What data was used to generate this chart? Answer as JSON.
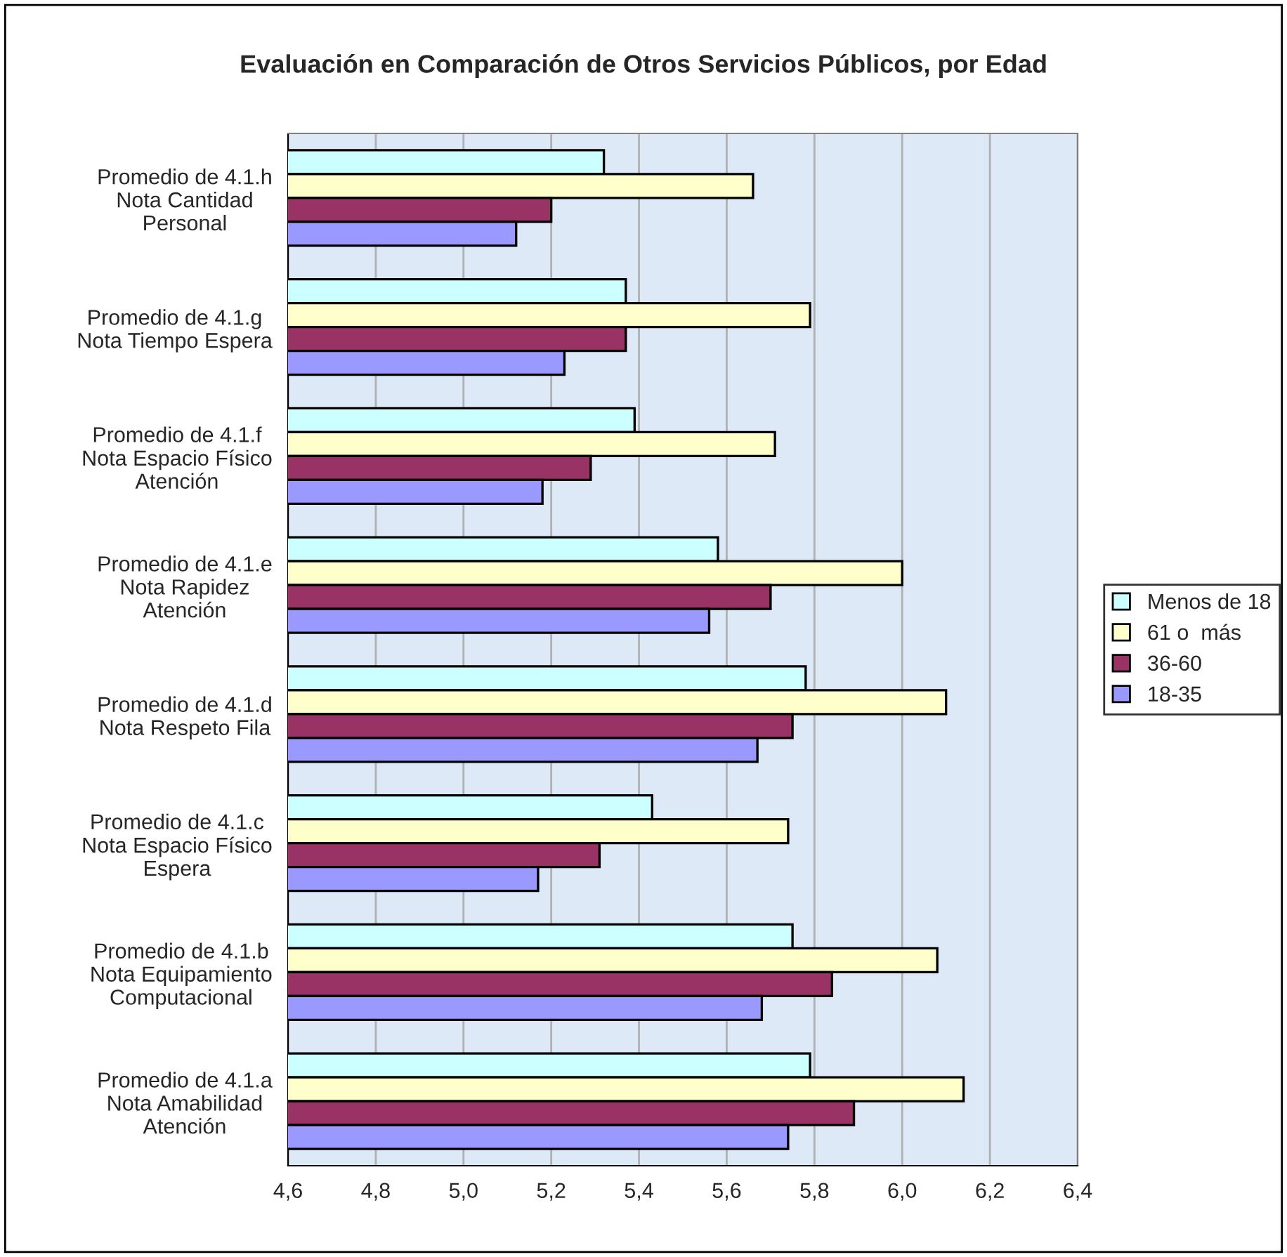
{
  "chart_data": {
    "type": "bar",
    "orientation": "horizontal",
    "title": "Evaluación en Comparación de Otros Servicios Públicos, por Edad",
    "categories": [
      "Promedio de 4.1.h\nNota Cantidad\nPersonal",
      "Promedio de 4.1.g\nNota Tiempo Espera",
      "Promedio de 4.1.f\nNota Espacio Físico\nAtención",
      "Promedio de 4.1.e\nNota Rapidez\nAtención",
      "Promedio de 4.1.d\nNota Respeto Fila",
      "Promedio de 4.1.c\nNota Espacio Físico\nEspera",
      "Promedio de 4.1.b\nNota Equipamiento\nComputacional",
      "Promedio de 4.1.a\nNota Amabilidad\nAtención"
    ],
    "series": [
      {
        "name": "Menos de 18",
        "color": "#ccffff",
        "values": [
          5.32,
          5.37,
          5.39,
          5.58,
          5.78,
          5.43,
          5.75,
          5.79
        ]
      },
      {
        "name": "61 o  más",
        "color": "#ffffcc",
        "values": [
          5.66,
          5.79,
          5.71,
          6.0,
          6.1,
          5.74,
          6.08,
          6.14
        ]
      },
      {
        "name": "36-60",
        "color": "#993366",
        "values": [
          5.2,
          5.37,
          5.29,
          5.7,
          5.75,
          5.31,
          5.84,
          5.89
        ]
      },
      {
        "name": "18-35",
        "color": "#9999ff",
        "values": [
          5.12,
          5.23,
          5.18,
          5.56,
          5.67,
          5.17,
          5.68,
          5.74
        ]
      }
    ],
    "xlim": [
      4.6,
      6.4
    ],
    "xticks": [
      {
        "value": 4.6,
        "label": "4,6"
      },
      {
        "value": 4.8,
        "label": "4,8"
      },
      {
        "value": 5.0,
        "label": "5,0"
      },
      {
        "value": 5.2,
        "label": "5,2"
      },
      {
        "value": 5.4,
        "label": "5,4"
      },
      {
        "value": 5.6,
        "label": "5,6"
      },
      {
        "value": 5.8,
        "label": "5,8"
      },
      {
        "value": 6.0,
        "label": "6,0"
      },
      {
        "value": 6.2,
        "label": "6,2"
      },
      {
        "value": 6.4,
        "label": "6,4"
      }
    ],
    "grid": "x",
    "legend": "right"
  }
}
